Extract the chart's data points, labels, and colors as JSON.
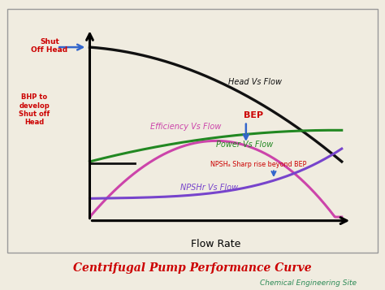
{
  "title": "Centrifugal Pump Performance Curve",
  "subtitle": "Chemical Engineering Site",
  "xlabel": "Flow Rate",
  "bg_color": "#f0ece0",
  "title_color": "#cc0000",
  "subtitle_color": "#2e8b57",
  "curves": {
    "head": {
      "label": "Head Vs Flow",
      "color": "#111111",
      "lw": 2.4
    },
    "efficiency": {
      "label": "Efficiency Vs Flow",
      "color": "#cc44aa",
      "lw": 2.2
    },
    "power": {
      "label": "Power Vs Flow",
      "color": "#228822",
      "lw": 2.2
    },
    "npshr": {
      "label": "NPSHr Vs Flow",
      "color": "#7744cc",
      "lw": 2.2
    }
  },
  "annotations": {
    "shut_off_head": {
      "text": "Shut\nOff Head",
      "color": "#cc0000"
    },
    "bhp": {
      "text": "BHP to\ndevelop\nShut off\nHead",
      "color": "#cc0000"
    },
    "bep": {
      "text": "BEP",
      "color": "#cc0000"
    },
    "npsh_note": {
      "text": "NPSHₐ Sharp rise beyond BEP",
      "color": "#cc0000"
    }
  }
}
